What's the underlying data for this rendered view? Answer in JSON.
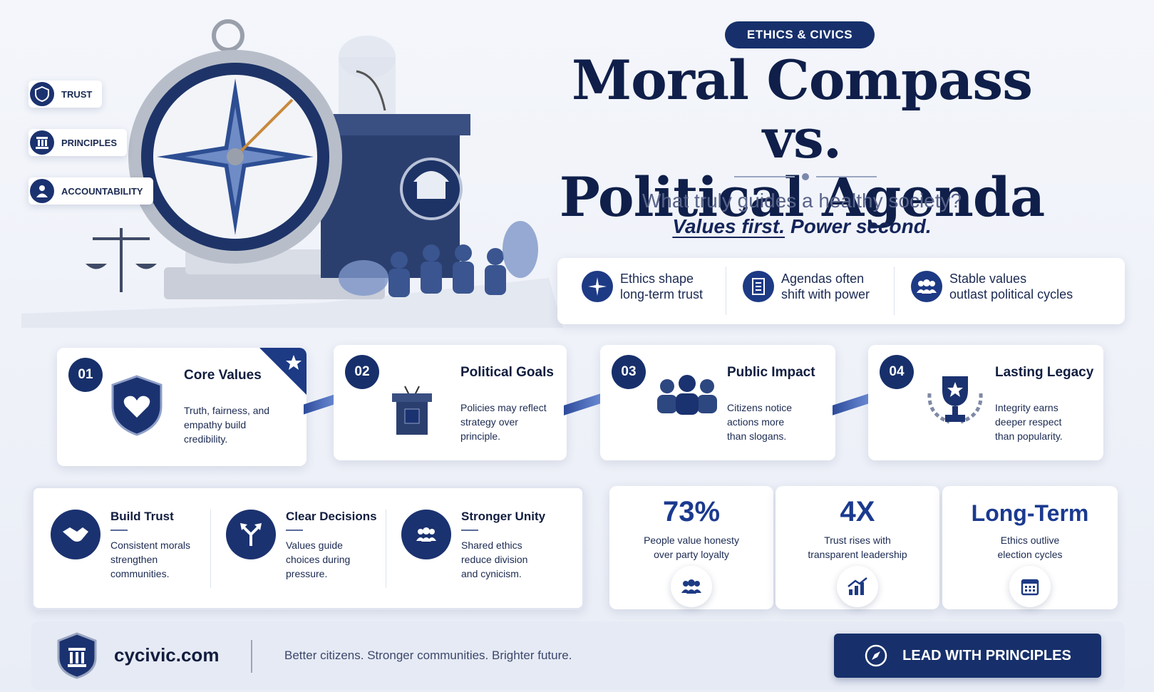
{
  "badge": "ETHICS & CIVICS",
  "title": [
    "Moral Compass vs.",
    "Political Agenda"
  ],
  "subtitle": "What truly guides a healthy society?",
  "tagline": {
    "first": "Values first.",
    "second": "Power second."
  },
  "side_tags": [
    "TRUST",
    "PRINCIPLES",
    "ACCOUNTABILITY"
  ],
  "highlights": [
    [
      "Ethics shape",
      "long-term trust"
    ],
    [
      "Agendas often",
      "shift with power"
    ],
    [
      "Stable values",
      "outlast political cycles"
    ]
  ],
  "steps": [
    {
      "number": "01",
      "title": "Core Values",
      "text": [
        "Truth, fairness, and",
        "empathy build",
        "credibility."
      ]
    },
    {
      "number": "02",
      "title": "Political Goals",
      "text": [
        "Policies may reflect",
        "strategy over",
        "principle."
      ]
    },
    {
      "number": "03",
      "title": "Public Impact",
      "text": [
        "Citizens notice",
        "actions more",
        "than slogans."
      ]
    },
    {
      "number": "04",
      "title": "Lasting Legacy",
      "text": [
        "Integrity earns",
        "deeper respect",
        "than popularity."
      ]
    }
  ],
  "benefits": [
    {
      "title": "Build Trust",
      "text": [
        "Consistent morals",
        "strengthen",
        "communities."
      ]
    },
    {
      "title": "Clear Decisions",
      "text": [
        "Values guide",
        "choices during",
        "pressure."
      ]
    },
    {
      "title": "Stronger Unity",
      "text": [
        "Shared ethics",
        "reduce division",
        "and cynicism."
      ]
    }
  ],
  "stats": [
    {
      "value": "73%",
      "text": [
        "People value honesty",
        "over party loyalty"
      ]
    },
    {
      "value": "4X",
      "text": [
        "Trust rises with",
        "transparent leadership"
      ]
    },
    {
      "value": "Long-Term",
      "text": [
        "Ethics outlive",
        "election cycles"
      ]
    }
  ],
  "footer": {
    "site": "cycivic.com",
    "slogan": "Better citizens. Stronger communities. Brighter future.",
    "button": "LEAD WITH PRINCIPLES"
  }
}
